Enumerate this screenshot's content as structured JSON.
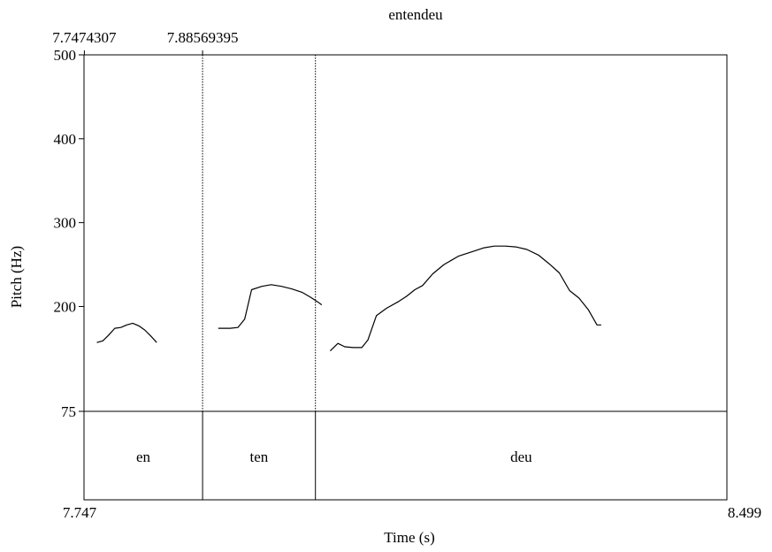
{
  "chart_data": {
    "type": "line",
    "title": "entendeu",
    "xlabel": "Time (s)",
    "ylabel": "Pitch (Hz)",
    "xlim": [
      7.747,
      8.499
    ],
    "ylim": [
      75,
      500
    ],
    "x_tick_labels": [
      "7.747",
      "8.499"
    ],
    "y_ticks": [
      500,
      400,
      300,
      200,
      75
    ],
    "top_time_labels": [
      {
        "t": 7.7474307,
        "label": "7.7474307"
      },
      {
        "t": 7.88569395,
        "label": "7.88569395"
      }
    ],
    "boundaries": [
      7.88569395,
      8.0177
    ],
    "segments": [
      {
        "label": "en",
        "start": 7.747,
        "end": 7.88569395
      },
      {
        "label": "ten",
        "start": 7.88569395,
        "end": 8.0177
      },
      {
        "label": "deu",
        "start": 8.0177,
        "end": 8.499
      }
    ],
    "series": [
      {
        "points": [
          [
            7.762,
            157
          ],
          [
            7.769,
            159
          ],
          [
            7.776,
            166
          ],
          [
            7.783,
            174
          ],
          [
            7.79,
            175
          ],
          [
            7.797,
            178
          ],
          [
            7.804,
            180
          ],
          [
            7.811,
            177
          ],
          [
            7.818,
            172
          ],
          [
            7.825,
            165
          ],
          [
            7.832,
            157
          ]
        ]
      },
      {
        "points": [
          [
            7.904,
            174
          ],
          [
            7.918,
            174
          ],
          [
            7.927,
            175
          ],
          [
            7.935,
            185
          ],
          [
            7.943,
            220
          ],
          [
            7.955,
            224
          ],
          [
            7.966,
            226
          ],
          [
            7.978,
            224
          ],
          [
            7.99,
            221
          ],
          [
            8.002,
            217
          ],
          [
            8.012,
            211
          ],
          [
            8.021,
            205
          ],
          [
            8.025,
            202
          ]
        ]
      },
      {
        "points": [
          [
            8.035,
            147
          ],
          [
            8.044,
            156
          ],
          [
            8.052,
            152
          ],
          [
            8.062,
            151
          ],
          [
            8.072,
            151
          ],
          [
            8.079,
            160
          ],
          [
            8.089,
            189
          ],
          [
            8.101,
            198
          ],
          [
            8.115,
            206
          ],
          [
            8.124,
            212
          ],
          [
            8.134,
            220
          ],
          [
            8.143,
            225
          ],
          [
            8.155,
            239
          ],
          [
            8.168,
            250
          ],
          [
            8.185,
            260
          ],
          [
            8.203,
            266
          ],
          [
            8.215,
            270
          ],
          [
            8.227,
            272
          ],
          [
            8.24,
            272
          ],
          [
            8.252,
            271
          ],
          [
            8.265,
            268
          ],
          [
            8.279,
            261
          ],
          [
            8.291,
            251
          ],
          [
            8.303,
            240
          ],
          [
            8.315,
            219
          ],
          [
            8.326,
            210
          ],
          [
            8.337,
            196
          ],
          [
            8.347,
            178
          ],
          [
            8.352,
            178
          ]
        ]
      }
    ]
  }
}
